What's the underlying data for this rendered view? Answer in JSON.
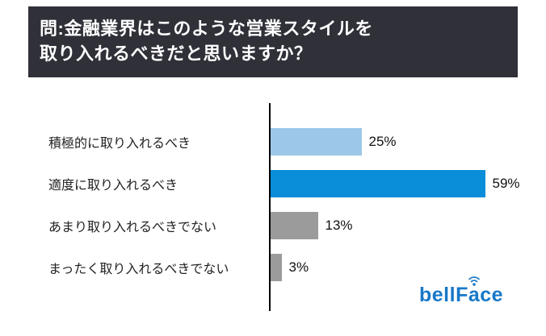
{
  "header": {
    "title_line1": "問:金融業界はこのような営業スタイルを",
    "title_line2": "取り入れるべきだと思いますか？"
  },
  "chart_data": {
    "type": "bar",
    "orientation": "horizontal",
    "title": "問:金融業界はこのような営業スタイルを取り入れるべきだと思いますか？",
    "categories": [
      "積極的に取り入れるべき",
      "適度に取り入れるべき",
      "あまり取り入れるべきでない",
      "まったく取り入れるべきでない"
    ],
    "values": [
      25,
      59,
      13,
      3
    ],
    "value_labels": [
      "25%",
      "59%",
      "13%",
      "3%"
    ],
    "colors": [
      "#9cc7e8",
      "#0a8ed9",
      "#9b9b9b",
      "#9b9b9b"
    ],
    "xlim": [
      0,
      65
    ],
    "grid": false,
    "legend": false,
    "axis_color": "#000000"
  },
  "logo": {
    "text": "bellFace",
    "color": "#1778c8"
  }
}
